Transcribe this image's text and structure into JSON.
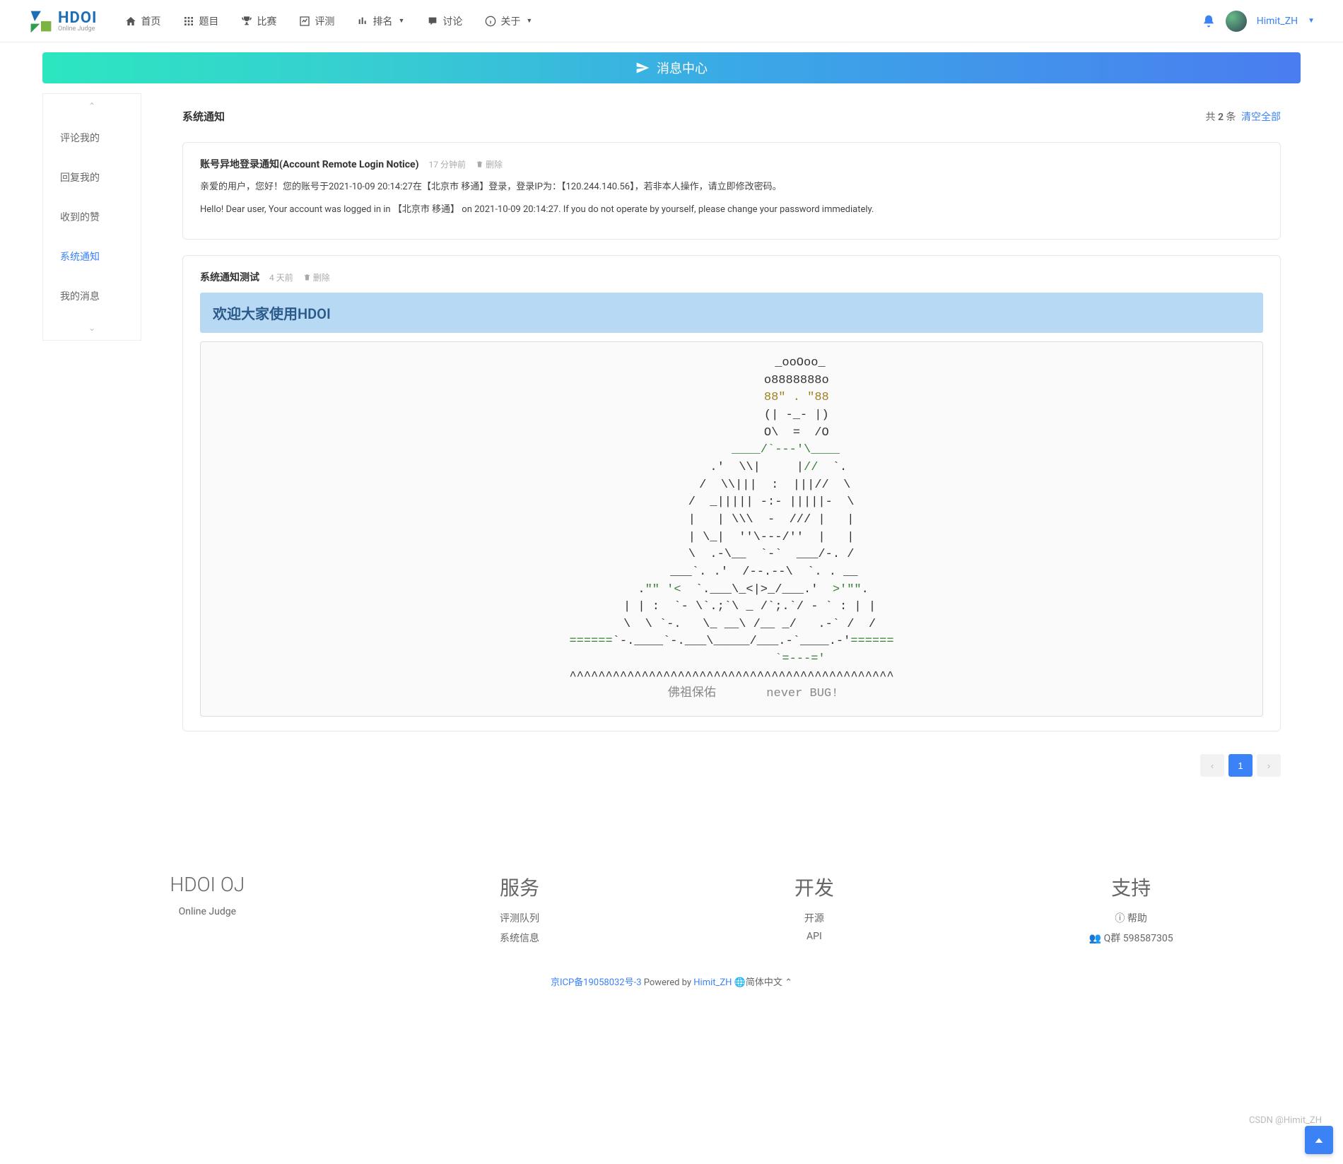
{
  "logo": {
    "name": "HDOI",
    "sub": "Online Judge"
  },
  "nav": {
    "items": [
      {
        "icon": "home",
        "label": "首页"
      },
      {
        "icon": "grid",
        "label": "题目"
      },
      {
        "icon": "trophy",
        "label": "比赛"
      },
      {
        "icon": "chart",
        "label": "评测"
      },
      {
        "icon": "bars",
        "label": "排名",
        "dropdown": true
      },
      {
        "icon": "comment",
        "label": "讨论"
      },
      {
        "icon": "info",
        "label": "关于",
        "dropdown": true
      }
    ]
  },
  "user": {
    "name": "Himit_ZH"
  },
  "band": {
    "icon": "paper-plane",
    "title": "消息中心"
  },
  "sidebar": {
    "items": [
      {
        "label": "评论我的"
      },
      {
        "label": "回复我的"
      },
      {
        "label": "收到的赞"
      },
      {
        "label": "系统通知",
        "active": true
      },
      {
        "label": "我的消息"
      }
    ]
  },
  "content": {
    "title": "系统通知",
    "count_prefix": "共 ",
    "count_num": "2",
    "count_suffix": " 条",
    "clear_all": "清空全部"
  },
  "notices": [
    {
      "title": "账号异地登录通知(Account Remote Login Notice)",
      "time": "17 分钟前",
      "delete": "删除",
      "lines": [
        "亲爱的用户，您好！您的账号于2021-10-09 20:14:27在【北京市 移通】登录，登录IP为：【120.244.140.56】，若非本人操作，请立即修改密码。",
        "Hello! Dear user, Your account was logged in in 【北京市 移通】 on 2021-10-09 20:14:27. If you do not operate by yourself, please change your password immediately."
      ]
    },
    {
      "title": "系统通知测试",
      "time": "4 天前",
      "delete": "删除",
      "welcome": "欢迎大家使用HDOI",
      "ascii": "                   _ooOoo_\n                  o8888888o\n                  <span class=\"y\">88\" . \"88</span>\n                  (| -_- |)\n                  O\\  =  /O\n               <span class=\"g\">____/`---'\\____</span>\n             .'  \\\\|     |<span class=\"g\">//</span>  `.\n            /  \\\\|||  :  |||//  \\\n           /  _||||| -:- |||||-  \\\n           |   | \\\\\\  -  /// |   |\n           | \\_|  ''\\---/''  |   |\n           \\  .-\\__  `-`  ___/-. /\n         ___`. .'  /--.--\\  `. . __\n      .<span class=\"g\">\"\" '<</span>  `.___\\_<|>_/___.'  <span class=\"g\">>'\"\"</span>.\n     | | :  `- \\`.;`\\ _ /`;.`/ - ` : | |\n     \\  \\ `-.   \\_ __\\ /__ _/   .-` /  /\n<span class=\"g\">======</span>`-.____`-.___\\_____/___.-`____.-'<span class=\"g\">======</span>\n                   <span class=\"g\">`=---='</span>\n^^^^^^^^^^^^^^^^^^^^^^^^^^^^^^^^^^^^^^^^^^^^^\n      <span class=\"gray\">佛祖保佑       never BUG!</span>"
    }
  ],
  "pagination": {
    "prev": "‹",
    "current": "1",
    "next": "›"
  },
  "footer": {
    "col1": {
      "title": "HDOI OJ",
      "line1": "Online Judge"
    },
    "col2": {
      "title": "服务",
      "line1": "评测队列",
      "line2": "系统信息"
    },
    "col3": {
      "title": "开发",
      "line1": "开源",
      "line2": "API"
    },
    "col4": {
      "title": "支持",
      "line1": "ⓘ 帮助",
      "line2": "👥 Q群 598587305"
    },
    "bottom": {
      "icp": "京ICP备19058032号-3",
      "powered": " Powered by ",
      "author": "Himit_ZH",
      "lang": " 🌐简体中文 "
    }
  },
  "watermark": "CSDN @Himit_ZH",
  "colors": {
    "primary": "#3b82f6",
    "band_gradient_start": "#2ce6c0",
    "band_gradient_end": "#4a7df0",
    "welcome_bg": "#b8d9f4",
    "welcome_fg": "#2a5a8a"
  }
}
